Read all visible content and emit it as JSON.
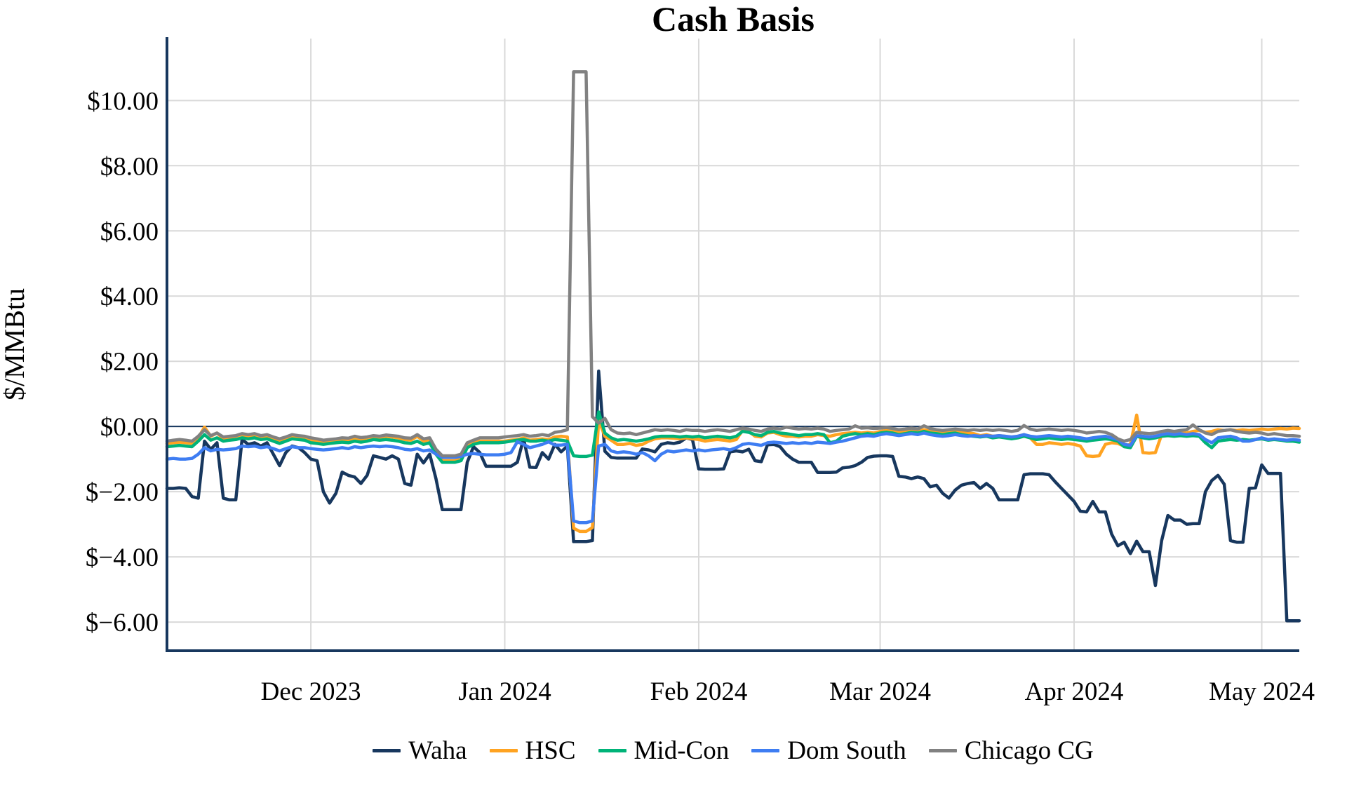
{
  "title": "Cash Basis",
  "y_axis": {
    "label": "$/MMBtu"
  },
  "colors": {
    "axis": "#17375E",
    "grid": "#D9D9D9",
    "zero_line": "#17375E",
    "waha": "#17375E",
    "hsc": "#FFA321",
    "midcon": "#00B378",
    "domsouth": "#3E7DF2",
    "chicago": "#818181"
  },
  "chart_data": {
    "type": "line",
    "title": "Cash Basis",
    "ylabel": "$/MMBtu",
    "xlabel": "",
    "grid": true,
    "legend_position": "bottom",
    "ylim": [
      -6.88,
      11.9
    ],
    "y_ticks": [
      {
        "label": "$10.00",
        "value": 10
      },
      {
        "label": "$8.00",
        "value": 8
      },
      {
        "label": "$6.00",
        "value": 6
      },
      {
        "label": "$4.00",
        "value": 4
      },
      {
        "label": "$2.00",
        "value": 2
      },
      {
        "label": "$0.00",
        "value": 0
      },
      {
        "label": "$−2.00",
        "value": -2
      },
      {
        "label": "$−4.00",
        "value": -4
      },
      {
        "label": "$−6.00",
        "value": -6
      }
    ],
    "x_start_date": "2023-11-08",
    "x_end_date": "2024-05-07",
    "x_ticks": [
      {
        "label": "Dec 2023",
        "day_index": 23
      },
      {
        "label": "Jan 2024",
        "day_index": 54
      },
      {
        "label": "Feb 2024",
        "day_index": 85
      },
      {
        "label": "Mar 2024",
        "day_index": 114
      },
      {
        "label": "Apr 2024",
        "day_index": 145
      },
      {
        "label": "May 2024",
        "day_index": 175
      }
    ],
    "series": [
      {
        "name": "Waha",
        "color_key": "waha",
        "values": [
          -1.9,
          -1.9,
          -1.88,
          -1.9,
          -2.15,
          -2.2,
          -0.45,
          -0.7,
          -0.5,
          -2.2,
          -2.25,
          -2.25,
          -0.4,
          -0.55,
          -0.5,
          -0.6,
          -0.5,
          -0.85,
          -1.2,
          -0.8,
          -0.6,
          -0.65,
          -0.8,
          -1.0,
          -1.05,
          -2.0,
          -2.35,
          -2.05,
          -1.4,
          -1.5,
          -1.55,
          -1.75,
          -1.5,
          -0.9,
          -0.95,
          -1.0,
          -0.9,
          -1.0,
          -1.75,
          -1.8,
          -0.85,
          -1.12,
          -0.85,
          -1.6,
          -2.55,
          -2.55,
          -2.55,
          -2.55,
          -1.1,
          -0.62,
          -0.8,
          -1.22,
          -1.22,
          -1.22,
          -1.22,
          -1.22,
          -1.1,
          -0.37,
          -1.25,
          -1.26,
          -0.8,
          -1.0,
          -0.55,
          -0.78,
          -0.6,
          -3.53,
          -3.53,
          -3.53,
          -3.5,
          1.7,
          -0.76,
          -0.95,
          -0.97,
          -0.97,
          -0.97,
          -0.97,
          -0.69,
          -0.72,
          -0.78,
          -0.55,
          -0.5,
          -0.52,
          -0.48,
          -0.35,
          -0.4,
          -1.3,
          -1.31,
          -1.31,
          -1.31,
          -1.3,
          -0.78,
          -0.75,
          -0.78,
          -0.7,
          -1.05,
          -1.08,
          -0.56,
          -0.55,
          -0.62,
          -0.85,
          -1.0,
          -1.1,
          -1.1,
          -1.1,
          -1.41,
          -1.41,
          -1.41,
          -1.4,
          -1.27,
          -1.25,
          -1.2,
          -1.1,
          -0.95,
          -0.91,
          -0.9,
          -0.9,
          -0.92,
          -1.53,
          -1.55,
          -1.6,
          -1.55,
          -1.6,
          -1.85,
          -1.8,
          -2.05,
          -2.2,
          -1.95,
          -1.8,
          -1.75,
          -1.72,
          -1.9,
          -1.75,
          -1.9,
          -2.25,
          -2.25,
          -2.25,
          -2.25,
          -1.48,
          -1.45,
          -1.45,
          -1.45,
          -1.48,
          -1.7,
          -1.9,
          -2.1,
          -2.3,
          -2.6,
          -2.62,
          -2.3,
          -2.62,
          -2.62,
          -3.3,
          -3.66,
          -3.55,
          -3.9,
          -3.52,
          -3.84,
          -3.84,
          -4.88,
          -3.5,
          -2.73,
          -2.87,
          -2.87,
          -3.0,
          -2.98,
          -2.98,
          -2.0,
          -1.66,
          -1.5,
          -1.77,
          -3.5,
          -3.55,
          -3.55,
          -1.9,
          -1.88,
          -1.18,
          -1.44,
          -1.44,
          -1.44,
          -5.96,
          -5.96,
          -5.96
        ]
      },
      {
        "name": "HSC",
        "color_key": "hsc",
        "values": [
          -0.52,
          -0.5,
          -0.48,
          -0.5,
          -0.52,
          -0.35,
          -0.02,
          -0.3,
          -0.2,
          -0.38,
          -0.35,
          -0.3,
          -0.25,
          -0.3,
          -0.28,
          -0.32,
          -0.3,
          -0.38,
          -0.45,
          -0.38,
          -0.3,
          -0.32,
          -0.35,
          -0.42,
          -0.45,
          -0.5,
          -0.48,
          -0.45,
          -0.4,
          -0.42,
          -0.35,
          -0.4,
          -0.38,
          -0.32,
          -0.35,
          -0.3,
          -0.32,
          -0.35,
          -0.4,
          -0.42,
          -0.3,
          -0.45,
          -0.4,
          -0.8,
          -1.05,
          -1.05,
          -1.05,
          -1.0,
          -0.6,
          -0.52,
          -0.45,
          -0.45,
          -0.45,
          -0.45,
          -0.45,
          -0.42,
          -0.4,
          -0.35,
          -0.42,
          -0.4,
          -0.38,
          -0.4,
          -0.32,
          -0.3,
          -0.32,
          -3.12,
          -3.22,
          -3.22,
          -3.1,
          0.2,
          -0.3,
          -0.42,
          -0.55,
          -0.55,
          -0.52,
          -0.58,
          -0.55,
          -0.45,
          -0.38,
          -0.35,
          -0.35,
          -0.36,
          -0.38,
          -0.35,
          -0.38,
          -0.4,
          -0.45,
          -0.42,
          -0.4,
          -0.42,
          -0.45,
          -0.4,
          -0.12,
          -0.15,
          -0.3,
          -0.32,
          -0.2,
          -0.18,
          -0.25,
          -0.3,
          -0.3,
          -0.32,
          -0.3,
          -0.3,
          -0.25,
          -0.28,
          -0.3,
          -0.25,
          -0.22,
          -0.2,
          -0.18,
          -0.2,
          -0.18,
          -0.2,
          -0.15,
          -0.12,
          -0.15,
          -0.18,
          -0.15,
          -0.12,
          -0.15,
          -0.1,
          -0.15,
          -0.18,
          -0.2,
          -0.18,
          -0.15,
          -0.18,
          -0.2,
          -0.22,
          -0.28,
          -0.25,
          -0.3,
          -0.28,
          -0.3,
          -0.35,
          -0.3,
          -0.25,
          -0.35,
          -0.55,
          -0.55,
          -0.5,
          -0.52,
          -0.55,
          -0.52,
          -0.55,
          -0.6,
          -0.9,
          -0.92,
          -0.9,
          -0.55,
          -0.5,
          -0.52,
          -0.6,
          -0.55,
          0.35,
          -0.8,
          -0.82,
          -0.8,
          -0.25,
          -0.2,
          -0.18,
          -0.15,
          -0.2,
          -0.15,
          -0.12,
          -0.18,
          -0.15,
          -0.1,
          -0.12,
          -0.1,
          -0.12,
          -0.1,
          -0.12,
          -0.1,
          -0.08,
          -0.1,
          -0.08,
          -0.06,
          -0.08,
          -0.05,
          -0.06
        ]
      },
      {
        "name": "Mid-Con",
        "color_key": "midcon",
        "values": [
          -0.62,
          -0.6,
          -0.58,
          -0.6,
          -0.62,
          -0.45,
          -0.25,
          -0.42,
          -0.35,
          -0.45,
          -0.42,
          -0.4,
          -0.35,
          -0.38,
          -0.35,
          -0.4,
          -0.38,
          -0.45,
          -0.52,
          -0.45,
          -0.38,
          -0.4,
          -0.42,
          -0.5,
          -0.52,
          -0.55,
          -0.52,
          -0.5,
          -0.48,
          -0.5,
          -0.45,
          -0.48,
          -0.45,
          -0.4,
          -0.42,
          -0.4,
          -0.42,
          -0.45,
          -0.5,
          -0.52,
          -0.45,
          -0.55,
          -0.5,
          -0.85,
          -1.1,
          -1.1,
          -1.1,
          -1.05,
          -0.65,
          -0.55,
          -0.5,
          -0.5,
          -0.5,
          -0.5,
          -0.48,
          -0.45,
          -0.42,
          -0.4,
          -0.45,
          -0.45,
          -0.42,
          -0.45,
          -0.4,
          -0.42,
          -0.45,
          -0.9,
          -0.92,
          -0.92,
          -0.88,
          0.45,
          -0.2,
          -0.35,
          -0.42,
          -0.4,
          -0.42,
          -0.45,
          -0.42,
          -0.38,
          -0.32,
          -0.3,
          -0.3,
          -0.3,
          -0.32,
          -0.3,
          -0.32,
          -0.3,
          -0.35,
          -0.32,
          -0.3,
          -0.32,
          -0.35,
          -0.3,
          -0.15,
          -0.18,
          -0.25,
          -0.28,
          -0.18,
          -0.15,
          -0.2,
          -0.22,
          -0.25,
          -0.28,
          -0.25,
          -0.25,
          -0.22,
          -0.25,
          -0.5,
          -0.45,
          -0.3,
          -0.25,
          -0.22,
          -0.25,
          -0.22,
          -0.25,
          -0.2,
          -0.18,
          -0.2,
          -0.25,
          -0.22,
          -0.18,
          -0.2,
          -0.15,
          -0.2,
          -0.22,
          -0.25,
          -0.22,
          -0.2,
          -0.25,
          -0.28,
          -0.3,
          -0.32,
          -0.3,
          -0.35,
          -0.32,
          -0.35,
          -0.38,
          -0.35,
          -0.3,
          -0.35,
          -0.4,
          -0.38,
          -0.35,
          -0.38,
          -0.4,
          -0.38,
          -0.4,
          -0.42,
          -0.45,
          -0.42,
          -0.4,
          -0.38,
          -0.4,
          -0.45,
          -0.62,
          -0.65,
          -0.3,
          -0.35,
          -0.38,
          -0.35,
          -0.3,
          -0.28,
          -0.3,
          -0.28,
          -0.3,
          -0.28,
          -0.3,
          -0.5,
          -0.65,
          -0.45,
          -0.42,
          -0.4,
          -0.42,
          -0.4,
          -0.42,
          -0.4,
          -0.38,
          -0.42,
          -0.4,
          -0.42,
          -0.45,
          -0.45,
          -0.48
        ]
      },
      {
        "name": "Dom South",
        "color_key": "domsouth",
        "values": [
          -1.0,
          -0.98,
          -1.0,
          -1.0,
          -0.98,
          -0.85,
          -0.65,
          -0.75,
          -0.7,
          -0.72,
          -0.7,
          -0.68,
          -0.6,
          -0.62,
          -0.6,
          -0.65,
          -0.62,
          -0.68,
          -0.75,
          -0.68,
          -0.62,
          -0.65,
          -0.65,
          -0.68,
          -0.7,
          -0.72,
          -0.7,
          -0.68,
          -0.65,
          -0.68,
          -0.62,
          -0.65,
          -0.62,
          -0.6,
          -0.62,
          -0.6,
          -0.62,
          -0.65,
          -0.7,
          -0.72,
          -0.68,
          -0.75,
          -0.72,
          -0.85,
          -0.95,
          -0.95,
          -0.95,
          -0.92,
          -0.85,
          -0.83,
          -0.85,
          -0.87,
          -0.87,
          -0.87,
          -0.85,
          -0.8,
          -0.47,
          -0.55,
          -0.65,
          -0.6,
          -0.55,
          -0.47,
          -0.57,
          -0.57,
          -0.55,
          -2.9,
          -2.95,
          -2.95,
          -2.9,
          -0.6,
          -0.55,
          -0.75,
          -0.8,
          -0.78,
          -0.8,
          -0.85,
          -0.8,
          -0.9,
          -1.05,
          -0.85,
          -0.75,
          -0.78,
          -0.75,
          -0.72,
          -0.75,
          -0.72,
          -0.75,
          -0.72,
          -0.7,
          -0.68,
          -0.72,
          -0.65,
          -0.55,
          -0.52,
          -0.55,
          -0.58,
          -0.5,
          -0.48,
          -0.5,
          -0.52,
          -0.5,
          -0.52,
          -0.5,
          -0.52,
          -0.48,
          -0.5,
          -0.52,
          -0.48,
          -0.45,
          -0.4,
          -0.35,
          -0.3,
          -0.28,
          -0.3,
          -0.25,
          -0.22,
          -0.25,
          -0.28,
          -0.25,
          -0.22,
          -0.25,
          -0.2,
          -0.25,
          -0.28,
          -0.3,
          -0.28,
          -0.25,
          -0.28,
          -0.3,
          -0.28,
          -0.3,
          -0.28,
          -0.3,
          -0.28,
          -0.3,
          -0.32,
          -0.3,
          -0.25,
          -0.3,
          -0.32,
          -0.3,
          -0.28,
          -0.3,
          -0.32,
          -0.3,
          -0.32,
          -0.35,
          -0.38,
          -0.35,
          -0.32,
          -0.3,
          -0.35,
          -0.4,
          -0.55,
          -0.58,
          -0.28,
          -0.3,
          -0.32,
          -0.3,
          -0.25,
          -0.22,
          -0.25,
          -0.22,
          -0.25,
          -0.22,
          -0.25,
          -0.4,
          -0.5,
          -0.35,
          -0.32,
          -0.3,
          -0.35,
          -0.45,
          -0.45,
          -0.4,
          -0.35,
          -0.4,
          -0.38,
          -0.4,
          -0.42,
          -0.4,
          -0.42
        ]
      },
      {
        "name": "Chicago CG",
        "color_key": "chicago",
        "values": [
          -0.45,
          -0.42,
          -0.4,
          -0.42,
          -0.45,
          -0.3,
          -0.1,
          -0.28,
          -0.2,
          -0.32,
          -0.3,
          -0.28,
          -0.22,
          -0.25,
          -0.22,
          -0.28,
          -0.25,
          -0.32,
          -0.38,
          -0.32,
          -0.25,
          -0.28,
          -0.3,
          -0.35,
          -0.38,
          -0.42,
          -0.4,
          -0.38,
          -0.35,
          -0.36,
          -0.3,
          -0.34,
          -0.32,
          -0.28,
          -0.3,
          -0.26,
          -0.28,
          -0.3,
          -0.35,
          -0.36,
          -0.25,
          -0.38,
          -0.35,
          -0.7,
          -0.9,
          -0.9,
          -0.9,
          -0.85,
          -0.5,
          -0.42,
          -0.35,
          -0.35,
          -0.35,
          -0.35,
          -0.32,
          -0.3,
          -0.28,
          -0.25,
          -0.3,
          -0.28,
          -0.25,
          -0.28,
          -0.18,
          -0.15,
          -0.1,
          10.88,
          10.88,
          10.88,
          0.3,
          0.1,
          0.25,
          -0.1,
          -0.2,
          -0.22,
          -0.2,
          -0.25,
          -0.2,
          -0.15,
          -0.1,
          -0.12,
          -0.1,
          -0.12,
          -0.15,
          -0.1,
          -0.12,
          -0.12,
          -0.15,
          -0.12,
          -0.1,
          -0.12,
          -0.15,
          -0.1,
          -0.05,
          -0.08,
          -0.12,
          -0.15,
          -0.08,
          -0.05,
          -0.08,
          -0.02,
          -0.05,
          -0.08,
          -0.06,
          -0.08,
          -0.05,
          -0.08,
          -0.15,
          -0.12,
          -0.1,
          -0.08,
          0.02,
          -0.05,
          -0.04,
          -0.06,
          -0.05,
          -0.03,
          -0.06,
          -0.1,
          -0.08,
          -0.05,
          -0.08,
          0.02,
          -0.06,
          -0.1,
          -0.12,
          -0.1,
          -0.08,
          -0.1,
          -0.12,
          -0.1,
          -0.12,
          -0.1,
          -0.12,
          -0.1,
          -0.12,
          -0.15,
          -0.12,
          0.03,
          -0.08,
          -0.12,
          -0.1,
          -0.08,
          -0.1,
          -0.12,
          -0.1,
          -0.12,
          -0.15,
          -0.2,
          -0.18,
          -0.15,
          -0.18,
          -0.25,
          -0.38,
          -0.45,
          -0.4,
          -0.18,
          -0.2,
          -0.22,
          -0.2,
          -0.15,
          -0.12,
          -0.15,
          -0.12,
          -0.1,
          0.05,
          -0.1,
          -0.2,
          -0.25,
          -0.15,
          -0.12,
          -0.1,
          -0.15,
          -0.18,
          -0.2,
          -0.18,
          -0.2,
          -0.25,
          -0.22,
          -0.25,
          -0.28,
          -0.28,
          -0.3
        ]
      }
    ]
  }
}
